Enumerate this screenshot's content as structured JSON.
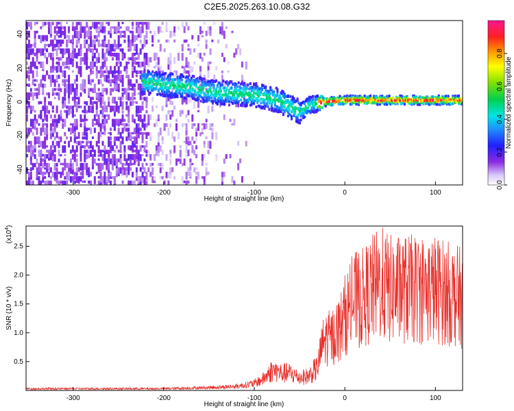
{
  "title": "C2E5.2025.263.10.08.G32",
  "chart_data": [
    {
      "type": "heatmap",
      "xlabel": "Height of straight line (km)",
      "ylabel": "Frequency (Hz)",
      "xlim": [
        -352,
        130
      ],
      "ylim": [
        -49,
        48
      ],
      "xticks": [
        -300,
        -200,
        -100,
        0,
        100
      ],
      "yticks": [
        -40,
        -20,
        0,
        20,
        40
      ],
      "colorbar": {
        "label": "Normalized spectral amplitude",
        "range": [
          0.0,
          1.0
        ],
        "ticks": [
          0.0,
          0.2,
          0.4,
          0.6,
          0.8
        ]
      },
      "ridge": {
        "x": [
          -225,
          -200,
          -175,
          -150,
          -125,
          -100,
          -75,
          -50,
          -40,
          -25,
          0,
          25,
          50,
          75,
          100,
          130
        ],
        "frequency": [
          12,
          10,
          9,
          6,
          5,
          4,
          1,
          -6,
          -2,
          0,
          1,
          1,
          1,
          1,
          1,
          1
        ]
      }
    },
    {
      "type": "line",
      "xlabel": "Height of straight line (km)",
      "ylabel": "SNR (10 * v/v)",
      "y_multiplier": "(x10",
      "y_multiplier_exp": "4",
      "y_multiplier_close": ")",
      "xlim": [
        -352,
        130
      ],
      "ylim": [
        0,
        2.85
      ],
      "xticks": [
        -300,
        -200,
        -100,
        0,
        100
      ],
      "yticks": [
        0.5,
        1.0,
        1.5,
        2.0,
        2.5
      ],
      "ytick_labels": [
        "0.5",
        "1.0",
        "1.5",
        "2.0",
        "2.5"
      ],
      "series": [
        {
          "color": "#e8302b",
          "x": [
            -352,
            -300,
            -250,
            -200,
            -150,
            -120,
            -100,
            -90,
            -80,
            -70,
            -60,
            -50,
            -40,
            -30,
            -25,
            -20,
            -15,
            -10,
            -5,
            0,
            10,
            20,
            30,
            40,
            50,
            60,
            80,
            100,
            110,
            120,
            130
          ],
          "y": [
            0.03,
            0.03,
            0.03,
            0.03,
            0.05,
            0.07,
            0.12,
            0.2,
            0.35,
            0.3,
            0.3,
            0.22,
            0.25,
            0.4,
            0.8,
            0.9,
            0.9,
            1.0,
            1.1,
            1.3,
            1.55,
            1.6,
            1.75,
            1.85,
            1.75,
            1.75,
            1.75,
            1.75,
            1.7,
            1.65,
            1.6
          ]
        }
      ]
    }
  ]
}
